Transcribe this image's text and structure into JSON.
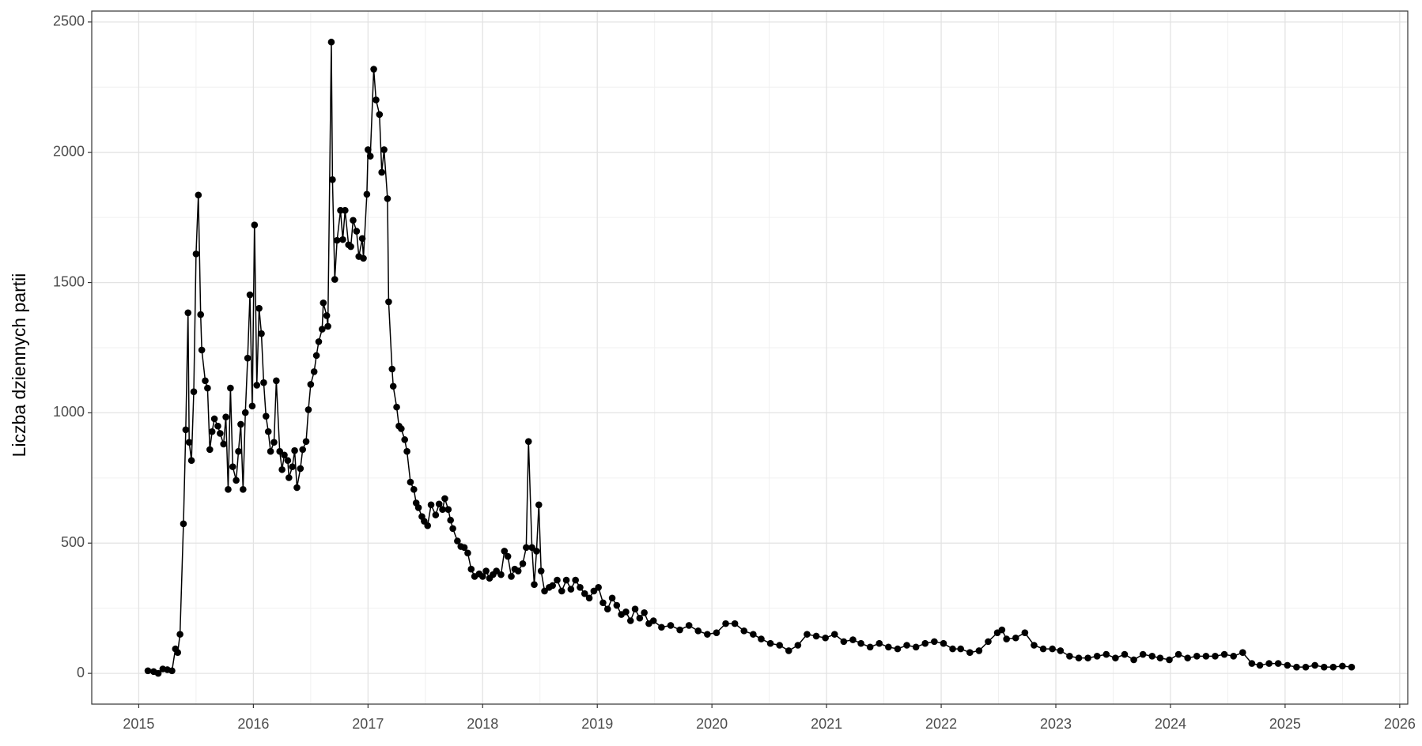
{
  "chart_data": {
    "type": "line",
    "y_label": "Liczba dziennych partii",
    "color": "#000000",
    "markers": true,
    "grid": true,
    "xlim": [
      2014.59,
      2026.07
    ],
    "xticks": [
      2015,
      2016,
      2017,
      2018,
      2019,
      2020,
      2021,
      2022,
      2023,
      2024,
      2025,
      2026
    ],
    "ylim": [
      -118,
      2542
    ],
    "yticks": [
      0,
      500,
      1000,
      1500,
      2000,
      2500
    ],
    "x": [
      2015.08,
      2015.13,
      2015.17,
      2015.21,
      2015.25,
      2015.29,
      2015.32,
      2015.34,
      2015.36,
      2015.39,
      2015.41,
      2015.43,
      2015.44,
      2015.46,
      2015.48,
      2015.5,
      2015.52,
      2015.54,
      2015.55,
      2015.58,
      2015.6,
      2015.62,
      2015.64,
      2015.66,
      2015.69,
      2015.71,
      2015.74,
      2015.76,
      2015.78,
      2015.8,
      2015.82,
      2015.85,
      2015.87,
      2015.89,
      2015.91,
      2015.93,
      2015.95,
      2015.97,
      2015.99,
      2016.01,
      2016.03,
      2016.05,
      2016.07,
      2016.09,
      2016.11,
      2016.13,
      2016.15,
      2016.18,
      2016.2,
      2016.23,
      2016.25,
      2016.27,
      2016.3,
      2016.31,
      2016.34,
      2016.36,
      2016.38,
      2016.41,
      2016.43,
      2016.46,
      2016.48,
      2016.5,
      2016.53,
      2016.55,
      2016.57,
      2016.6,
      2016.61,
      2016.64,
      2016.65,
      2016.68,
      2016.69,
      2016.71,
      2016.73,
      2016.76,
      2016.78,
      2016.8,
      2016.83,
      2016.85,
      2016.87,
      2016.9,
      2016.92,
      2016.95,
      2016.96,
      2016.99,
      2017.0,
      2017.02,
      2017.05,
      2017.07,
      2017.1,
      2017.12,
      2017.14,
      2017.17,
      2017.18,
      2017.21,
      2017.22,
      2017.25,
      2017.27,
      2017.29,
      2017.32,
      2017.34,
      2017.37,
      2017.4,
      2017.42,
      2017.44,
      2017.47,
      2017.49,
      2017.52,
      2017.55,
      2017.59,
      2017.62,
      2017.65,
      2017.67,
      2017.7,
      2017.72,
      2017.74,
      2017.78,
      2017.81,
      2017.84,
      2017.87,
      2017.9,
      2017.93,
      2017.97,
      2018.0,
      2018.03,
      2018.06,
      2018.09,
      2018.12,
      2018.16,
      2018.19,
      2018.22,
      2018.25,
      2018.28,
      2018.31,
      2018.35,
      2018.38,
      2018.4,
      2018.43,
      2018.45,
      2018.47,
      2018.49,
      2018.51,
      2018.54,
      2018.58,
      2018.61,
      2018.65,
      2018.69,
      2018.73,
      2018.77,
      2018.81,
      2018.85,
      2018.89,
      2018.93,
      2018.97,
      2019.01,
      2019.05,
      2019.09,
      2019.13,
      2019.17,
      2019.21,
      2019.25,
      2019.29,
      2019.33,
      2019.37,
      2019.41,
      2019.45,
      2019.49,
      2019.56,
      2019.64,
      2019.72,
      2019.8,
      2019.88,
      2019.96,
      2020.04,
      2020.12,
      2020.2,
      2020.28,
      2020.36,
      2020.43,
      2020.51,
      2020.59,
      2020.67,
      2020.75,
      2020.83,
      2020.91,
      2020.99,
      2021.07,
      2021.15,
      2021.23,
      2021.3,
      2021.38,
      2021.46,
      2021.54,
      2021.62,
      2021.7,
      2021.78,
      2021.86,
      2021.94,
      2022.02,
      2022.1,
      2022.17,
      2022.25,
      2022.33,
      2022.41,
      2022.49,
      2022.53,
      2022.57,
      2022.65,
      2022.73,
      2022.81,
      2022.89,
      2022.97,
      2023.04,
      2023.12,
      2023.2,
      2023.28,
      2023.36,
      2023.44,
      2023.52,
      2023.6,
      2023.68,
      2023.76,
      2023.84,
      2023.91,
      2023.99,
      2024.07,
      2024.15,
      2024.23,
      2024.31,
      2024.39,
      2024.47,
      2024.55,
      2024.63,
      2024.71,
      2024.78,
      2024.86,
      2024.94,
      2025.02,
      2025.1,
      2025.18,
      2025.26,
      2025.34,
      2025.42,
      2025.5,
      2025.58
    ],
    "values": [
      10,
      7,
      0,
      17,
      14,
      10,
      94,
      80,
      150,
      574,
      935,
      1384,
      887,
      817,
      1081,
      1610,
      1836,
      1377,
      1241,
      1123,
      1095,
      859,
      928,
      977,
      949,
      921,
      880,
      984,
      706,
      1095,
      793,
      741,
      852,
      956,
      706,
      1001,
      1210,
      1453,
      1026,
      1721,
      1106,
      1401,
      1304,
      1116,
      987,
      928,
      852,
      887,
      1123,
      852,
      782,
      838,
      817,
      751,
      793,
      855,
      713,
      786,
      859,
      890,
      1012,
      1109,
      1158,
      1220,
      1273,
      1321,
      1422,
      1373,
      1332,
      2423,
      1895,
      1512,
      1662,
      1777,
      1665,
      1777,
      1645,
      1638,
      1739,
      1697,
      1600,
      1669,
      1593,
      1839,
      2010,
      1985,
      2319,
      2201,
      2145,
      1923,
      2010,
      1822,
      1426,
      1168,
      1102,
      1022,
      949,
      939,
      897,
      852,
      734,
      706,
      654,
      636,
      602,
      584,
      567,
      647,
      608,
      650,
      629,
      671,
      629,
      588,
      556,
      508,
      487,
      483,
      462,
      400,
      372,
      382,
      372,
      393,
      365,
      379,
      393,
      379,
      469,
      449,
      372,
      400,
      393,
      421,
      483,
      890,
      483,
      341,
      469,
      647,
      393,
      316,
      330,
      337,
      358,
      316,
      358,
      323,
      358,
      330,
      306,
      289,
      316,
      330,
      271,
      247,
      289,
      261,
      226,
      236,
      202,
      247,
      212,
      233,
      191,
      202,
      177,
      184,
      167,
      184,
      163,
      150,
      156,
      191,
      191,
      163,
      150,
      132,
      115,
      108,
      87,
      108,
      150,
      143,
      136,
      150,
      122,
      129,
      115,
      101,
      115,
      101,
      94,
      108,
      101,
      115,
      122,
      115,
      94,
      94,
      80,
      87,
      122,
      156,
      167,
      132,
      136,
      156,
      108,
      94,
      94,
      87,
      66,
      59,
      59,
      66,
      73,
      59,
      73,
      52,
      73,
      66,
      59,
      52,
      73,
      59,
      66,
      66,
      66,
      73,
      66,
      80,
      38,
      31,
      38,
      38,
      31,
      24,
      24,
      31,
      24,
      24,
      28,
      24
    ]
  }
}
